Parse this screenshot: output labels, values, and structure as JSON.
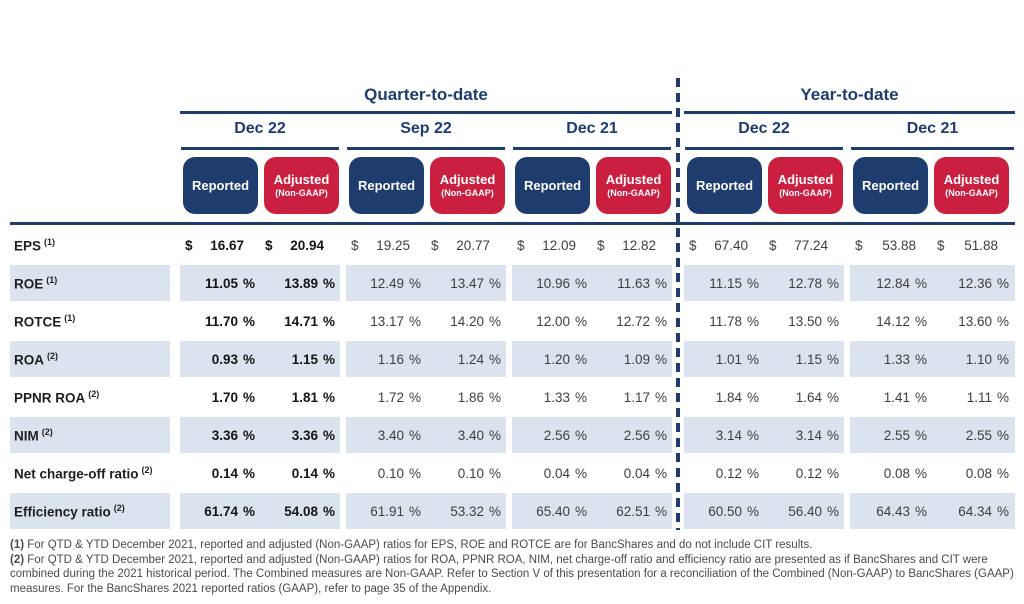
{
  "header": {
    "sections": {
      "qtd": "Quarter-to-date",
      "ytd": "Year-to-date"
    },
    "dates": [
      "Dec 22",
      "Sep 22",
      "Dec 21",
      "Dec 22",
      "Dec 21"
    ],
    "reported": "Reported",
    "adjusted": "Adjusted",
    "adjusted_sub": "(Non-GAAP)"
  },
  "table": {
    "currency_symbol": "$",
    "percent_symbol": "%",
    "rows": [
      {
        "label": "EPS",
        "ref": "(1)",
        "format": "currency",
        "values": [
          "16.67",
          "20.94",
          "19.25",
          "20.77",
          "12.09",
          "12.82",
          "67.40",
          "77.24",
          "53.88",
          "51.88"
        ]
      },
      {
        "label": "ROE",
        "ref": "(1)",
        "format": "percent",
        "values": [
          "11.05",
          "13.89",
          "12.49",
          "13.47",
          "10.96",
          "11.63",
          "11.15",
          "12.78",
          "12.84",
          "12.36"
        ]
      },
      {
        "label": "ROTCE",
        "ref": "(1)",
        "format": "percent",
        "values": [
          "11.70",
          "14.71",
          "13.17",
          "14.20",
          "12.00",
          "12.72",
          "11.78",
          "13.50",
          "14.12",
          "13.60"
        ]
      },
      {
        "label": "ROA",
        "ref": "(2)",
        "format": "percent",
        "values": [
          "0.93",
          "1.15",
          "1.16",
          "1.24",
          "1.20",
          "1.09",
          "1.01",
          "1.15",
          "1.33",
          "1.10"
        ]
      },
      {
        "label": "PPNR ROA",
        "ref": "(2)",
        "format": "percent",
        "values": [
          "1.70",
          "1.81",
          "1.72",
          "1.86",
          "1.33",
          "1.17",
          "1.84",
          "1.64",
          "1.41",
          "1.11"
        ]
      },
      {
        "label": "NIM",
        "ref": "(2)",
        "format": "percent",
        "values": [
          "3.36",
          "3.36",
          "3.40",
          "3.40",
          "2.56",
          "2.56",
          "3.14",
          "3.14",
          "2.55",
          "2.55"
        ]
      },
      {
        "label": "Net charge-off ratio",
        "ref": "(2)",
        "format": "percent",
        "values": [
          "0.14",
          "0.14",
          "0.10",
          "0.10",
          "0.04",
          "0.04",
          "0.12",
          "0.12",
          "0.08",
          "0.08"
        ]
      },
      {
        "label": "Efficiency ratio",
        "ref": "(2)",
        "format": "percent",
        "values": [
          "61.74",
          "54.08",
          "61.91",
          "53.32",
          "65.40",
          "62.51",
          "60.50",
          "56.40",
          "64.43",
          "64.34"
        ]
      }
    ]
  },
  "footnotes": [
    {
      "marker": "(1)",
      "text": "For QTD & YTD December 2021, reported and adjusted (Non-GAAP) ratios for EPS, ROE and ROTCE are for BancShares and do not include CIT results."
    },
    {
      "marker": "(2)",
      "text": "For QTD & YTD December 2021, reported and adjusted (Non-GAAP) ratios for ROA, PPNR ROA, NIM, net charge-off ratio and efficiency ratio are presented as if BancShares and CIT were combined during the 2021 historical period. The Combined measures are Non-GAAP. Refer to Section V of this presentation for a reconciliation of the Combined (Non-GAAP) to BancShares (GAAP) measures. For the BancShares 2021 reported ratios (GAAP), refer to page 35 of the Appendix."
    }
  ],
  "colors": {
    "navy": "#1e3c6e",
    "red": "#cb1f3f",
    "stripe": "#dbe4ee"
  }
}
